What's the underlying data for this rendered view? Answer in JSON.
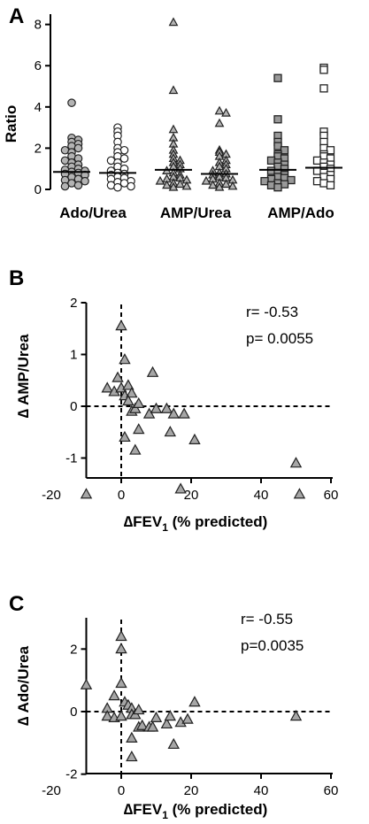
{
  "chart_data": [
    {
      "type": "scatter",
      "panel": "A",
      "ylabel": "Ratio",
      "ylim": [
        0,
        8.5
      ],
      "yticks": [
        0,
        2,
        4,
        6,
        8
      ],
      "groups": [
        "Ado/Urea",
        "AMP/Urea",
        "AMP/Ado"
      ],
      "series": [
        {
          "group": "Ado/Urea",
          "marker": "circle",
          "fill": "#b3b3b3",
          "median": 0.85,
          "values": [
            4.2,
            2.5,
            2.4,
            2.3,
            2.2,
            2.1,
            2.0,
            1.9,
            1.8,
            1.6,
            1.5,
            1.4,
            1.3,
            1.2,
            1.1,
            1.0,
            0.95,
            0.9,
            0.85,
            0.8,
            0.75,
            0.7,
            0.6,
            0.5,
            0.45,
            0.4,
            0.3,
            0.2,
            0.15
          ]
        },
        {
          "group": "Ado/Urea",
          "marker": "circle",
          "fill": "#ffffff",
          "median": 0.8,
          "values": [
            3.0,
            2.8,
            2.6,
            2.3,
            2.0,
            1.9,
            1.8,
            1.6,
            1.5,
            1.4,
            1.3,
            1.1,
            1.0,
            0.9,
            0.8,
            0.75,
            0.7,
            0.6,
            0.55,
            0.5,
            0.4,
            0.35,
            0.3,
            0.2,
            0.15,
            0.1
          ]
        },
        {
          "group": "AMP/Urea",
          "marker": "triangle",
          "fill": "#b3b3b3",
          "median": 0.95,
          "values": [
            8.1,
            4.8,
            2.9,
            2.5,
            2.2,
            1.9,
            1.7,
            1.5,
            1.4,
            1.3,
            1.2,
            1.1,
            1.0,
            0.9,
            0.8,
            0.7,
            0.6,
            0.55,
            0.5,
            0.45,
            0.4,
            0.3,
            0.25,
            0.2,
            0.15,
            0.1
          ]
        },
        {
          "group": "AMP/Urea",
          "marker": "triangle",
          "fill": "#b3b3b3",
          "median": 0.75,
          "values": [
            3.8,
            3.7,
            3.2,
            1.9,
            1.8,
            1.7,
            1.6,
            1.4,
            1.3,
            1.2,
            1.1,
            1.0,
            0.9,
            0.8,
            0.75,
            0.7,
            0.6,
            0.55,
            0.5,
            0.45,
            0.4,
            0.3,
            0.25,
            0.2,
            0.15,
            0.1
          ]
        },
        {
          "group": "AMP/Ado",
          "marker": "square",
          "fill": "#999999",
          "median": 0.95,
          "values": [
            5.4,
            3.4,
            2.6,
            2.3,
            2.1,
            1.9,
            1.7,
            1.6,
            1.5,
            1.4,
            1.3,
            1.2,
            1.1,
            1.0,
            0.9,
            0.8,
            0.7,
            0.6,
            0.55,
            0.5,
            0.45,
            0.4,
            0.3,
            0.25,
            0.2,
            0.1
          ]
        },
        {
          "group": "AMP/Ado",
          "marker": "square",
          "fill": "#ffffff",
          "median": 1.05,
          "values": [
            5.9,
            5.8,
            4.9,
            2.8,
            2.6,
            2.3,
            2.0,
            1.9,
            1.7,
            1.6,
            1.5,
            1.4,
            1.3,
            1.2,
            1.1,
            1.0,
            0.9,
            0.8,
            0.7,
            0.6,
            0.5,
            0.4,
            0.3,
            0.2
          ]
        }
      ]
    },
    {
      "type": "scatter",
      "panel": "B",
      "ylabel": "∆ AMP/Urea",
      "xlabel_main": "∆FEV",
      "xlabel_sub": "1",
      "xlabel_rest": " (% predicted)",
      "xlim": [
        -20,
        60
      ],
      "ylim": [
        -2,
        2
      ],
      "xticks": [
        -20,
        0,
        20,
        40,
        60
      ],
      "yticks": [
        -1,
        0,
        1,
        2
      ],
      "ytick_labels": [
        "-1",
        "0",
        "1",
        "2"
      ],
      "stat_r": "r= -0.53",
      "stat_p": "p= 0.0055",
      "points": [
        {
          "x": 0,
          "y": 1.55
        },
        {
          "x": 1,
          "y": 0.9
        },
        {
          "x": -4,
          "y": 0.35
        },
        {
          "x": -2,
          "y": 0.28
        },
        {
          "x": -1,
          "y": 0.55
        },
        {
          "x": 0,
          "y": 0.35
        },
        {
          "x": 1,
          "y": 0.2
        },
        {
          "x": 2,
          "y": 0.4
        },
        {
          "x": 3,
          "y": 0.25
        },
        {
          "x": 2,
          "y": 0.1
        },
        {
          "x": 3,
          "y": -0.1
        },
        {
          "x": 4,
          "y": -0.05
        },
        {
          "x": 5,
          "y": 0.05
        },
        {
          "x": 1,
          "y": -0.6
        },
        {
          "x": 5,
          "y": -0.45
        },
        {
          "x": 4,
          "y": -0.85
        },
        {
          "x": 8,
          "y": -0.15
        },
        {
          "x": 9,
          "y": 0.65
        },
        {
          "x": 10,
          "y": -0.05
        },
        {
          "x": 13,
          "y": -0.05
        },
        {
          "x": 15,
          "y": -0.15
        },
        {
          "x": 14,
          "y": -0.5
        },
        {
          "x": 18,
          "y": -0.15
        },
        {
          "x": 21,
          "y": -0.65
        },
        {
          "x": 17,
          "y": -1.6
        },
        {
          "x": -10,
          "y": -1.7
        },
        {
          "x": 50,
          "y": -1.1
        },
        {
          "x": 51,
          "y": -1.7
        }
      ]
    },
    {
      "type": "scatter",
      "panel": "C",
      "ylabel": "∆ Ado/Urea",
      "xlabel_main": "∆FEV",
      "xlabel_sub": "1",
      "xlabel_rest": " (% predicted)",
      "xlim": [
        -20,
        60
      ],
      "ylim": [
        -3,
        3
      ],
      "xticks": [
        -20,
        0,
        20,
        40,
        60
      ],
      "yticks": [
        -2,
        0,
        2
      ],
      "ytick_labels": [
        "-2",
        "0",
        "2"
      ],
      "stat_r": "r= -0.55",
      "stat_p": "p=0.0035",
      "points": [
        {
          "x": 0,
          "y": 2.4
        },
        {
          "x": 0,
          "y": 2.0
        },
        {
          "x": 0,
          "y": 0.9
        },
        {
          "x": -10,
          "y": 0.85
        },
        {
          "x": -2,
          "y": 0.5
        },
        {
          "x": -4,
          "y": 0.1
        },
        {
          "x": -4,
          "y": -0.15
        },
        {
          "x": -2,
          "y": -0.2
        },
        {
          "x": 0,
          "y": -0.15
        },
        {
          "x": 1,
          "y": 0.3
        },
        {
          "x": 2,
          "y": 0.2
        },
        {
          "x": 3,
          "y": 0.1
        },
        {
          "x": 3,
          "y": -0.1
        },
        {
          "x": 4,
          "y": -0.1
        },
        {
          "x": 5,
          "y": 0.05
        },
        {
          "x": 3,
          "y": -0.85
        },
        {
          "x": 3,
          "y": -1.45
        },
        {
          "x": 5,
          "y": -0.5
        },
        {
          "x": 6,
          "y": -0.45
        },
        {
          "x": 8,
          "y": -0.5
        },
        {
          "x": 9,
          "y": -0.5
        },
        {
          "x": 10,
          "y": -0.2
        },
        {
          "x": 13,
          "y": -0.4
        },
        {
          "x": 14,
          "y": -0.15
        },
        {
          "x": 15,
          "y": -1.05
        },
        {
          "x": 17,
          "y": -0.35
        },
        {
          "x": 19,
          "y": -0.25
        },
        {
          "x": 21,
          "y": 0.3
        },
        {
          "x": 50,
          "y": -0.15
        }
      ]
    }
  ]
}
